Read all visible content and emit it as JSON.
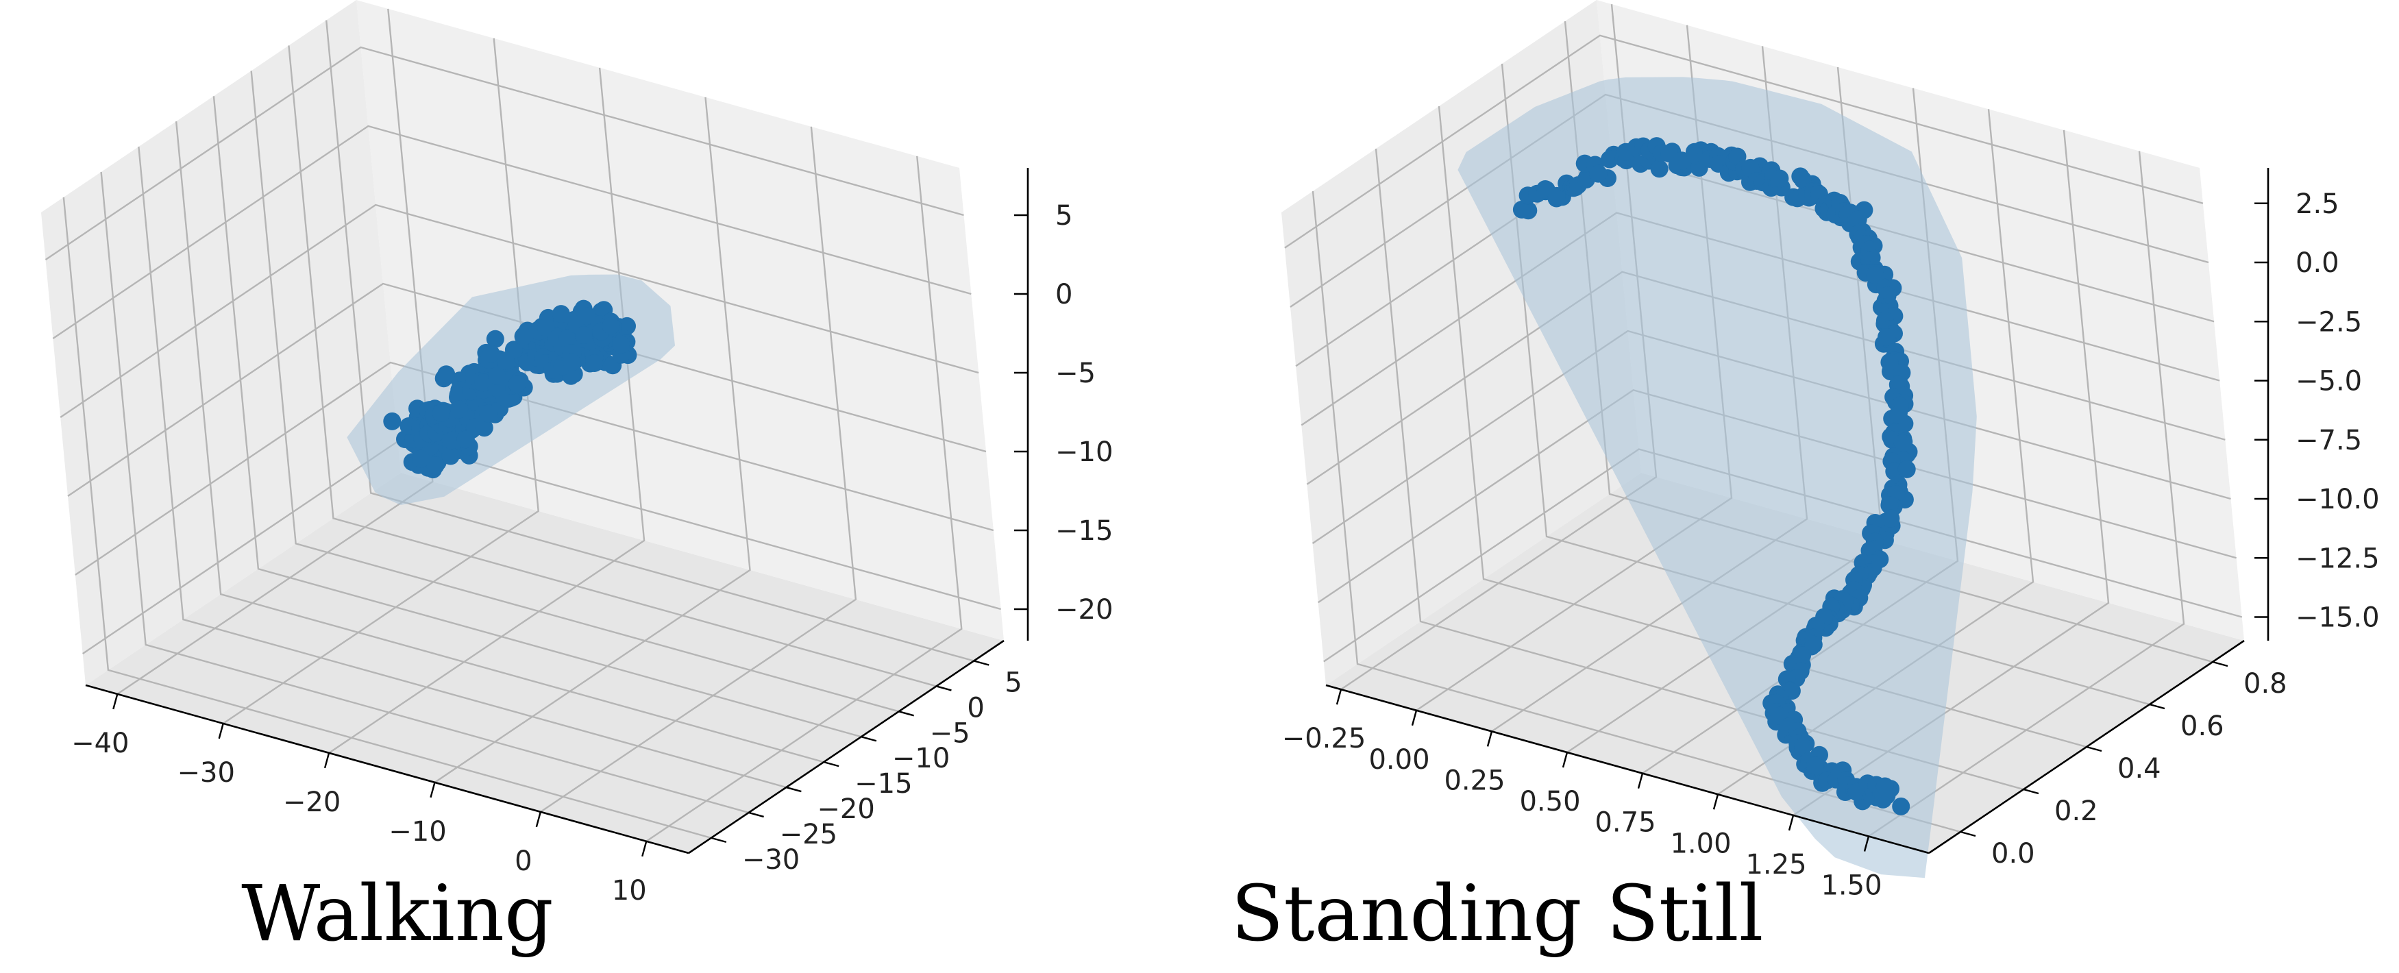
{
  "colors": {
    "series": "#1f6fad",
    "hull": "#a8c3d8",
    "pane": "#f0f0f0",
    "pane_dark": "#e6e6e6",
    "grid": "#b5b5b5",
    "axis": "#000000"
  },
  "chart_data": [
    {
      "type": "scatter",
      "subtype": "3d-trajectory-with-convex-hull",
      "title": "Walking",
      "grid": true,
      "xlabel": "",
      "ylabel": "",
      "zlabel": "",
      "xlim": [
        -43,
        14
      ],
      "ylim": [
        -33,
        9
      ],
      "zlim": [
        -22,
        8
      ],
      "x_ticks": [
        -40,
        -30,
        -20,
        -10,
        0,
        10
      ],
      "y_ticks": [
        -30,
        -25,
        -20,
        -15,
        -10,
        -5,
        0,
        5
      ],
      "z_ticks": [
        5,
        0,
        -5,
        -10,
        -15,
        -20
      ],
      "x_tick_labels": [
        "−40",
        "−30",
        "−20",
        "−10",
        "0",
        "10"
      ],
      "y_tick_labels": [
        "−30",
        "−25",
        "−20",
        "−15",
        "−10",
        "−5",
        "0",
        "5"
      ],
      "z_tick_labels": [
        "5",
        "0",
        "−5",
        "−10",
        "−15",
        "−20"
      ],
      "series": [
        {
          "path_seed": 7,
          "noise": 0.9,
          "path": [
            [
              -36,
              3,
              -17
            ],
            [
              -35,
              2,
              -16
            ],
            [
              -32,
              1,
              -15
            ],
            [
              -30,
              0,
              -13
            ],
            [
              -26,
              -2,
              -10
            ],
            [
              -22,
              -5,
              -8
            ],
            [
              -18,
              -7,
              -5
            ],
            [
              -14,
              -9,
              -3
            ],
            [
              -10,
              -12,
              -1
            ],
            [
              -6,
              -14,
              1
            ],
            [
              -3,
              -16,
              2
            ],
            [
              0,
              -18,
              3
            ]
          ]
        }
      ]
    },
    {
      "type": "scatter",
      "subtype": "3d-trajectory-with-convex-hull",
      "title": "Standing Still",
      "grid": true,
      "xlabel": "",
      "ylabel": "",
      "zlabel": "",
      "xlim": [
        -0.3,
        1.7
      ],
      "ylim": [
        -0.1,
        0.9
      ],
      "zlim": [
        -16,
        4
      ],
      "x_ticks": [
        -0.25,
        0.0,
        0.25,
        0.5,
        0.75,
        1.0,
        1.25,
        1.5
      ],
      "y_ticks": [
        0.0,
        0.2,
        0.4,
        0.6,
        0.8
      ],
      "z_ticks": [
        2.5,
        0.0,
        -2.5,
        -5.0,
        -7.5,
        -10.0,
        -12.5,
        -15.0
      ],
      "x_tick_labels": [
        "−0.25",
        "0.00",
        "0.25",
        "0.50",
        "0.75",
        "1.00",
        "1.25",
        "1.50"
      ],
      "y_tick_labels": [
        "0.0",
        "0.2",
        "0.4",
        "0.6",
        "0.8"
      ],
      "z_tick_labels": [
        "2.5",
        "0.0",
        "−2.5",
        "−5.0",
        "−7.5",
        "−10.0",
        "−12.5",
        "−15.0"
      ],
      "series": [
        {
          "path_seed": 13,
          "noise": 0.35,
          "path": [
            [
              -0.2,
              0.55,
              -1
            ],
            [
              0.1,
              0.6,
              1.5
            ],
            [
              0.4,
              0.62,
              2.2
            ],
            [
              0.7,
              0.58,
              2.4
            ],
            [
              0.95,
              0.52,
              2.6
            ],
            [
              1.1,
              0.45,
              0.5
            ],
            [
              1.2,
              0.38,
              -3
            ],
            [
              1.25,
              0.3,
              -6
            ],
            [
              1.2,
              0.22,
              -9
            ],
            [
              1.1,
              0.15,
              -11
            ],
            [
              1.05,
              0.05,
              -13.5
            ],
            [
              1.3,
              -0.05,
              -14.5
            ],
            [
              1.55,
              -0.05,
              -14.8
            ]
          ]
        }
      ]
    }
  ]
}
